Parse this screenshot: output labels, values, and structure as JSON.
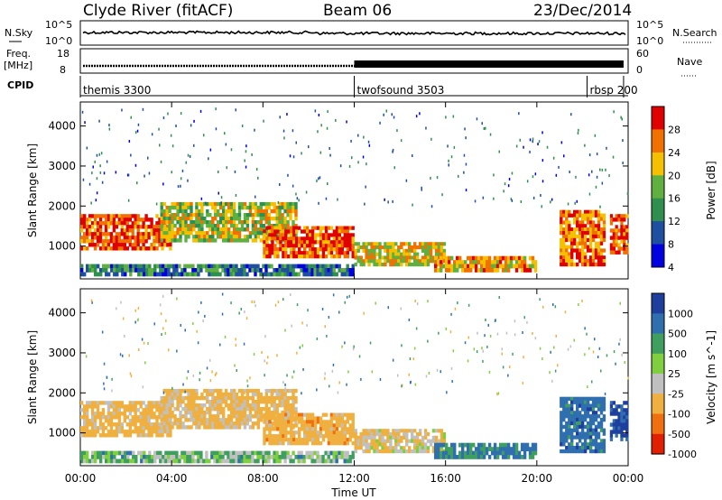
{
  "header": {
    "station": "Clyde River (fitACF)",
    "beam": "Beam 06",
    "date": "23/Dec/2014"
  },
  "noise_panel": {
    "left_label": "N.Sky",
    "left_ticks": [
      "10^5",
      "10^0"
    ],
    "right_label": "N.Search",
    "right_ticks": [
      "10^5",
      "10^0"
    ]
  },
  "freq_panel": {
    "left_label_line1": "Freq.",
    "left_label_line2": "[MHz]",
    "left_ticks": [
      "18",
      "8"
    ],
    "right_label": "Nave",
    "right_ticks": [
      "60",
      "0"
    ]
  },
  "cpid": {
    "label": "CPID",
    "segments": [
      {
        "name": "themis 3300",
        "start_hour": 0.0
      },
      {
        "name": "twofsound 3503",
        "start_hour": 12.0
      },
      {
        "name": "rbsp 200",
        "start_hour": 22.2
      }
    ],
    "end_hour": 23.8
  },
  "time_axis": {
    "label": "Time UT",
    "range_hours": [
      0,
      24
    ],
    "ticks": [
      "00:00",
      "04:00",
      "08:00",
      "12:00",
      "16:00",
      "20:00",
      "00:00"
    ]
  },
  "power_panel": {
    "ylabel": "Slant Range [km]",
    "yticks": [
      "4000",
      "3000",
      "2000",
      "1000"
    ],
    "colorbar_label": "Power [dB]",
    "colorbar_ticks": [
      "28",
      "24",
      "20",
      "16",
      "12",
      "8",
      "4"
    ],
    "colors": [
      "#e00000",
      "#f07000",
      "#f5c000",
      "#60b040",
      "#2f8f4f",
      "#1f4fa0",
      "#0000e0"
    ]
  },
  "velocity_panel": {
    "ylabel": "Slant Range [km]",
    "yticks": [
      "4000",
      "3000",
      "2000",
      "1000"
    ],
    "colorbar_label": "Velocity [m s^-1]",
    "colorbar_ticks": [
      "1000",
      "500",
      "100",
      "25",
      "-25",
      "-100",
      "-500",
      "-1000"
    ],
    "colors": [
      "#1f3f9f",
      "#2f6faf",
      "#3f9f5f",
      "#7fcf3f",
      "#c0c0c0",
      "#f0b040",
      "#f07010",
      "#e02000"
    ]
  },
  "chart_data": [
    {
      "type": "heatmap",
      "title": "Power",
      "xlabel": "Time UT",
      "ylabel": "Slant Range [km]",
      "x_range_hours": [
        0,
        24
      ],
      "ylim": [
        180,
        4600
      ],
      "colorbar": {
        "label": "Power [dB]",
        "ticks": [
          28,
          24,
          20,
          16,
          12,
          8,
          4
        ]
      },
      "echo_regions": [
        {
          "t0": 0.0,
          "t1": 4.0,
          "r0": 900,
          "r1": 1800,
          "dB": 26
        },
        {
          "t0": 3.5,
          "t1": 9.5,
          "r0": 1100,
          "r1": 2100,
          "dB": 18
        },
        {
          "t0": 8.0,
          "t1": 12.0,
          "r0": 700,
          "r1": 1500,
          "dB": 26
        },
        {
          "t0": 0.0,
          "t1": 12.0,
          "r0": 250,
          "r1": 550,
          "dB": 10
        },
        {
          "t0": 12.0,
          "t1": 16.0,
          "r0": 500,
          "r1": 1100,
          "dB": 20
        },
        {
          "t0": 15.5,
          "t1": 20.0,
          "r0": 350,
          "r1": 750,
          "dB": 22
        },
        {
          "t0": 21.0,
          "t1": 23.0,
          "r0": 500,
          "r1": 1900,
          "dB": 24
        },
        {
          "t0": 23.2,
          "t1": 24.0,
          "r0": 800,
          "r1": 1800,
          "dB": 26
        }
      ]
    },
    {
      "type": "heatmap",
      "title": "Velocity",
      "xlabel": "Time UT",
      "ylabel": "Slant Range [km]",
      "x_range_hours": [
        0,
        24
      ],
      "ylim": [
        180,
        4600
      ],
      "colorbar": {
        "label": "Velocity [m s^-1]",
        "ticks": [
          1000,
          500,
          100,
          25,
          -25,
          -100,
          -500,
          -1000
        ]
      },
      "echo_regions": [
        {
          "t0": 0.0,
          "t1": 4.0,
          "r0": 900,
          "r1": 1800,
          "v": -200
        },
        {
          "t0": 3.5,
          "t1": 9.5,
          "r0": 1100,
          "r1": 2100,
          "v": -150
        },
        {
          "t0": 8.0,
          "t1": 12.0,
          "r0": 700,
          "r1": 1500,
          "v": -300
        },
        {
          "t0": 0.0,
          "t1": 12.0,
          "r0": 250,
          "r1": 550,
          "v": 10
        },
        {
          "t0": 12.0,
          "t1": 16.0,
          "r0": 500,
          "r1": 1100,
          "v": -100
        },
        {
          "t0": 15.5,
          "t1": 20.0,
          "r0": 350,
          "r1": 750,
          "v": 150
        },
        {
          "t0": 21.0,
          "t1": 23.0,
          "r0": 500,
          "r1": 1900,
          "v": 300
        },
        {
          "t0": 23.2,
          "t1": 24.0,
          "r0": 800,
          "r1": 1800,
          "v": 600
        }
      ]
    }
  ]
}
